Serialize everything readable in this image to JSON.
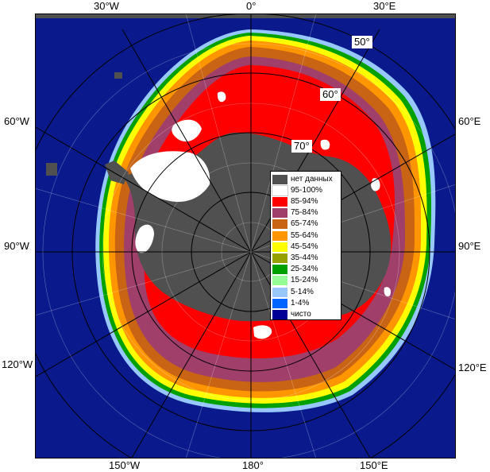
{
  "longitude_labels": {
    "top": [
      "30°W",
      "0°",
      "30°E"
    ],
    "left": [
      "60°W",
      "90°W",
      "120°W"
    ],
    "right": [
      "60°E",
      "90°E",
      "120°E"
    ],
    "bottom": [
      "150°W",
      "180°",
      "150°E"
    ]
  },
  "latitude_labels": [
    "50°",
    "60°",
    "70°"
  ],
  "legend": [
    {
      "label": "нет данных",
      "color": "#505050"
    },
    {
      "label": "95-100%",
      "color": "#ffffff"
    },
    {
      "label": "85-94%",
      "color": "#ff0000"
    },
    {
      "label": "75-84%",
      "color": "#a0406a"
    },
    {
      "label": "65-74%",
      "color": "#c86414"
    },
    {
      "label": "55-64%",
      "color": "#ff9600"
    },
    {
      "label": "45-54%",
      "color": "#ffff00"
    },
    {
      "label": "35-44%",
      "color": "#96a000"
    },
    {
      "label": "25-34%",
      "color": "#00a000"
    },
    {
      "label": "15-24%",
      "color": "#96ff96"
    },
    {
      "label": "5-14%",
      "color": "#96c8ff"
    },
    {
      "label": "1-4%",
      "color": "#0064ff"
    },
    {
      "label": "чисто",
      "color": "#000096"
    }
  ],
  "colors": {
    "ocean": "#0a1a8c",
    "no_data": "#505050",
    "grid": "#000000"
  }
}
